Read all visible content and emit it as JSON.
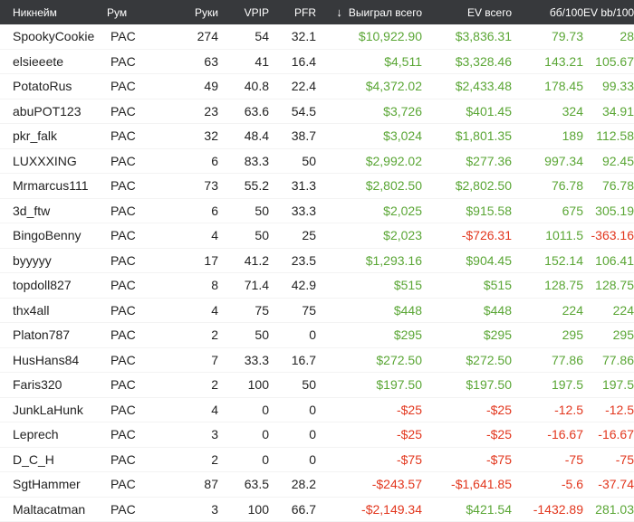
{
  "colors": {
    "positive": "#5aa635",
    "negative": "#e2361d",
    "header_bg": "#37393c"
  },
  "header": {
    "name": "Никнейм",
    "room": "Рум",
    "hands": "Руки",
    "vpip": "VPIP",
    "pfr": "PFR",
    "sort_icon": "arrow-down-icon",
    "sort_glyph": "↓",
    "won": "Выиграл всего",
    "ev": "EV всего",
    "bb": "бб/100",
    "evbb": "EV bb/100"
  },
  "rows": [
    {
      "name": "SpookyCookie",
      "room": "PAC",
      "hands": "274",
      "vpip": "54",
      "pfr": "32.1",
      "won": "$10,922.90",
      "ev": "$3,836.31",
      "bb": "79.73",
      "evbb": "28"
    },
    {
      "name": "elsieeete",
      "room": "PAC",
      "hands": "63",
      "vpip": "41",
      "pfr": "16.4",
      "won": "$4,511",
      "ev": "$3,328.46",
      "bb": "143.21",
      "evbb": "105.67"
    },
    {
      "name": "PotatoRus",
      "room": "PAC",
      "hands": "49",
      "vpip": "40.8",
      "pfr": "22.4",
      "won": "$4,372.02",
      "ev": "$2,433.48",
      "bb": "178.45",
      "evbb": "99.33"
    },
    {
      "name": "abuPOT123",
      "room": "PAC",
      "hands": "23",
      "vpip": "63.6",
      "pfr": "54.5",
      "won": "$3,726",
      "ev": "$401.45",
      "bb": "324",
      "evbb": "34.91"
    },
    {
      "name": "pkr_falk",
      "room": "PAC",
      "hands": "32",
      "vpip": "48.4",
      "pfr": "38.7",
      "won": "$3,024",
      "ev": "$1,801.35",
      "bb": "189",
      "evbb": "112.58"
    },
    {
      "name": "LUXXXING",
      "room": "PAC",
      "hands": "6",
      "vpip": "83.3",
      "pfr": "50",
      "won": "$2,992.02",
      "ev": "$277.36",
      "bb": "997.34",
      "evbb": "92.45"
    },
    {
      "name": "Mrmarcus111",
      "room": "PAC",
      "hands": "73",
      "vpip": "55.2",
      "pfr": "31.3",
      "won": "$2,802.50",
      "ev": "$2,802.50",
      "bb": "76.78",
      "evbb": "76.78"
    },
    {
      "name": "3d_ftw",
      "room": "PAC",
      "hands": "6",
      "vpip": "50",
      "pfr": "33.3",
      "won": "$2,025",
      "ev": "$915.58",
      "bb": "675",
      "evbb": "305.19"
    },
    {
      "name": "BingoBenny",
      "room": "PAC",
      "hands": "4",
      "vpip": "50",
      "pfr": "25",
      "won": "$2,023",
      "ev": "-$726.31",
      "bb": "1011.5",
      "evbb": "-363.16"
    },
    {
      "name": "byyyyy",
      "room": "PAC",
      "hands": "17",
      "vpip": "41.2",
      "pfr": "23.5",
      "won": "$1,293.16",
      "ev": "$904.45",
      "bb": "152.14",
      "evbb": "106.41"
    },
    {
      "name": "topdoll827",
      "room": "PAC",
      "hands": "8",
      "vpip": "71.4",
      "pfr": "42.9",
      "won": "$515",
      "ev": "$515",
      "bb": "128.75",
      "evbb": "128.75"
    },
    {
      "name": "thx4all",
      "room": "PAC",
      "hands": "4",
      "vpip": "75",
      "pfr": "75",
      "won": "$448",
      "ev": "$448",
      "bb": "224",
      "evbb": "224"
    },
    {
      "name": "Platon787",
      "room": "PAC",
      "hands": "2",
      "vpip": "50",
      "pfr": "0",
      "won": "$295",
      "ev": "$295",
      "bb": "295",
      "evbb": "295"
    },
    {
      "name": "HusHans84",
      "room": "PAC",
      "hands": "7",
      "vpip": "33.3",
      "pfr": "16.7",
      "won": "$272.50",
      "ev": "$272.50",
      "bb": "77.86",
      "evbb": "77.86"
    },
    {
      "name": "Faris320",
      "room": "PAC",
      "hands": "2",
      "vpip": "100",
      "pfr": "50",
      "won": "$197.50",
      "ev": "$197.50",
      "bb": "197.5",
      "evbb": "197.5"
    },
    {
      "name": "JunkLaHunk",
      "room": "PAC",
      "hands": "4",
      "vpip": "0",
      "pfr": "0",
      "won": "-$25",
      "ev": "-$25",
      "bb": "-12.5",
      "evbb": "-12.5"
    },
    {
      "name": "Leprech",
      "room": "PAC",
      "hands": "3",
      "vpip": "0",
      "pfr": "0",
      "won": "-$25",
      "ev": "-$25",
      "bb": "-16.67",
      "evbb": "-16.67"
    },
    {
      "name": "D_C_H",
      "room": "PAC",
      "hands": "2",
      "vpip": "0",
      "pfr": "0",
      "won": "-$75",
      "ev": "-$75",
      "bb": "-75",
      "evbb": "-75"
    },
    {
      "name": "SgtHammer",
      "room": "PAC",
      "hands": "87",
      "vpip": "63.5",
      "pfr": "28.2",
      "won": "-$243.57",
      "ev": "-$1,641.85",
      "bb": "-5.6",
      "evbb": "-37.74"
    },
    {
      "name": "Maltacatman",
      "room": "PAC",
      "hands": "3",
      "vpip": "100",
      "pfr": "66.7",
      "won": "-$2,149.34",
      "ev": "$421.54",
      "bb": "-1432.89",
      "evbb": "281.03"
    }
  ]
}
